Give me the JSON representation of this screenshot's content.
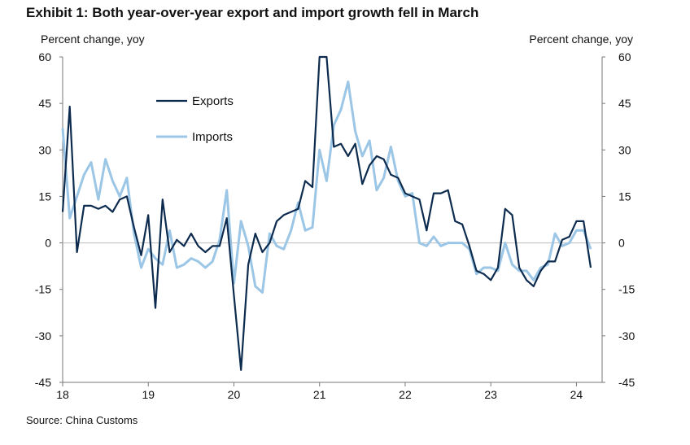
{
  "title": "Exhibit 1: Both year-over-year export and import growth fell in March",
  "left_axis_unit": "Percent change, yoy",
  "right_axis_unit": "Percent change, yoy",
  "source": "Source: China Customs",
  "colors": {
    "exports": "#0d2b4e",
    "imports": "#9cc6e6",
    "axis": "#777777"
  },
  "chart_data": {
    "type": "line",
    "ylim": [
      -45,
      60
    ],
    "yticks": [
      "60",
      "45",
      "30",
      "15",
      "0",
      "-15",
      "-30",
      "-45"
    ],
    "ytick_values": [
      60,
      45,
      30,
      15,
      0,
      -15,
      -30,
      -45
    ],
    "xlim": [
      2018.0,
      2024.3
    ],
    "xticks": [
      "18",
      "19",
      "20",
      "21",
      "22",
      "23",
      "24"
    ],
    "xtick_values": [
      2018,
      2019,
      2020,
      2021,
      2022,
      2023,
      2024
    ],
    "legend_position": "top-left",
    "series": [
      {
        "name": "Exports",
        "key": "exports",
        "x": [
          2018.0,
          2018.083,
          2018.167,
          2018.25,
          2018.333,
          2018.417,
          2018.5,
          2018.583,
          2018.667,
          2018.75,
          2018.833,
          2018.917,
          2019.0,
          2019.083,
          2019.167,
          2019.25,
          2019.333,
          2019.417,
          2019.5,
          2019.583,
          2019.667,
          2019.75,
          2019.833,
          2019.917,
          2020.0,
          2020.083,
          2020.167,
          2020.25,
          2020.333,
          2020.417,
          2020.5,
          2020.583,
          2020.667,
          2020.75,
          2020.833,
          2020.917,
          2021.0,
          2021.083,
          2021.167,
          2021.25,
          2021.333,
          2021.417,
          2021.5,
          2021.583,
          2021.667,
          2021.75,
          2021.833,
          2021.917,
          2022.0,
          2022.083,
          2022.167,
          2022.25,
          2022.333,
          2022.417,
          2022.5,
          2022.583,
          2022.667,
          2022.75,
          2022.833,
          2022.917,
          2023.0,
          2023.083,
          2023.167,
          2023.25,
          2023.333,
          2023.417,
          2023.5,
          2023.583,
          2023.667,
          2023.75,
          2023.833,
          2023.917,
          2024.0,
          2024.083,
          2024.167
        ],
        "values": [
          10,
          44,
          -3,
          12,
          12,
          11,
          12,
          10,
          14,
          15,
          5,
          -4,
          9,
          -21,
          14,
          -3,
          1,
          -1,
          3,
          -1,
          -3,
          -1,
          -1,
          8,
          -17,
          -41,
          -7,
          3,
          -3,
          0,
          7,
          9,
          10,
          11,
          20,
          18,
          60,
          60,
          31,
          32,
          28,
          32,
          19,
          25,
          28,
          27,
          22,
          21,
          16,
          15,
          14,
          4,
          16,
          16,
          17,
          7,
          6,
          -1,
          -9,
          -10,
          -12,
          -8,
          11,
          9,
          -8,
          -12,
          -14,
          -9,
          -6,
          -6,
          1,
          2,
          7,
          7,
          -8
        ]
      },
      {
        "name": "Imports",
        "key": "imports",
        "x": [
          2018.0,
          2018.083,
          2018.167,
          2018.25,
          2018.333,
          2018.417,
          2018.5,
          2018.583,
          2018.667,
          2018.75,
          2018.833,
          2018.917,
          2019.0,
          2019.083,
          2019.167,
          2019.25,
          2019.333,
          2019.417,
          2019.5,
          2019.583,
          2019.667,
          2019.75,
          2019.833,
          2019.917,
          2020.0,
          2020.083,
          2020.167,
          2020.25,
          2020.333,
          2020.417,
          2020.5,
          2020.583,
          2020.667,
          2020.75,
          2020.833,
          2020.917,
          2021.0,
          2021.083,
          2021.167,
          2021.25,
          2021.333,
          2021.417,
          2021.5,
          2021.583,
          2021.667,
          2021.75,
          2021.833,
          2021.917,
          2022.0,
          2022.083,
          2022.167,
          2022.25,
          2022.333,
          2022.417,
          2022.5,
          2022.583,
          2022.667,
          2022.75,
          2022.833,
          2022.917,
          2023.0,
          2023.083,
          2023.167,
          2023.25,
          2023.333,
          2023.417,
          2023.5,
          2023.583,
          2023.667,
          2023.75,
          2023.833,
          2023.917,
          2024.0,
          2024.083,
          2024.167
        ],
        "values": [
          37,
          8,
          15,
          22,
          26,
          14,
          27,
          20,
          15,
          21,
          3,
          -8,
          -2,
          -5,
          -7,
          4,
          -8,
          -7,
          -5,
          -6,
          -8,
          -6,
          1,
          17,
          -13,
          7,
          -1,
          -14,
          -16,
          3,
          -1,
          -2,
          4,
          13,
          4,
          5,
          30,
          20,
          38,
          43,
          52,
          36,
          28,
          33,
          17,
          21,
          31,
          20,
          15,
          16,
          0,
          -1,
          2,
          -1,
          0,
          0,
          0,
          -2,
          -10,
          -8,
          -8,
          -9,
          0,
          -7,
          -9,
          -9,
          -12,
          -8,
          -7,
          3,
          -1,
          0,
          4,
          4,
          -2
        ]
      }
    ]
  }
}
